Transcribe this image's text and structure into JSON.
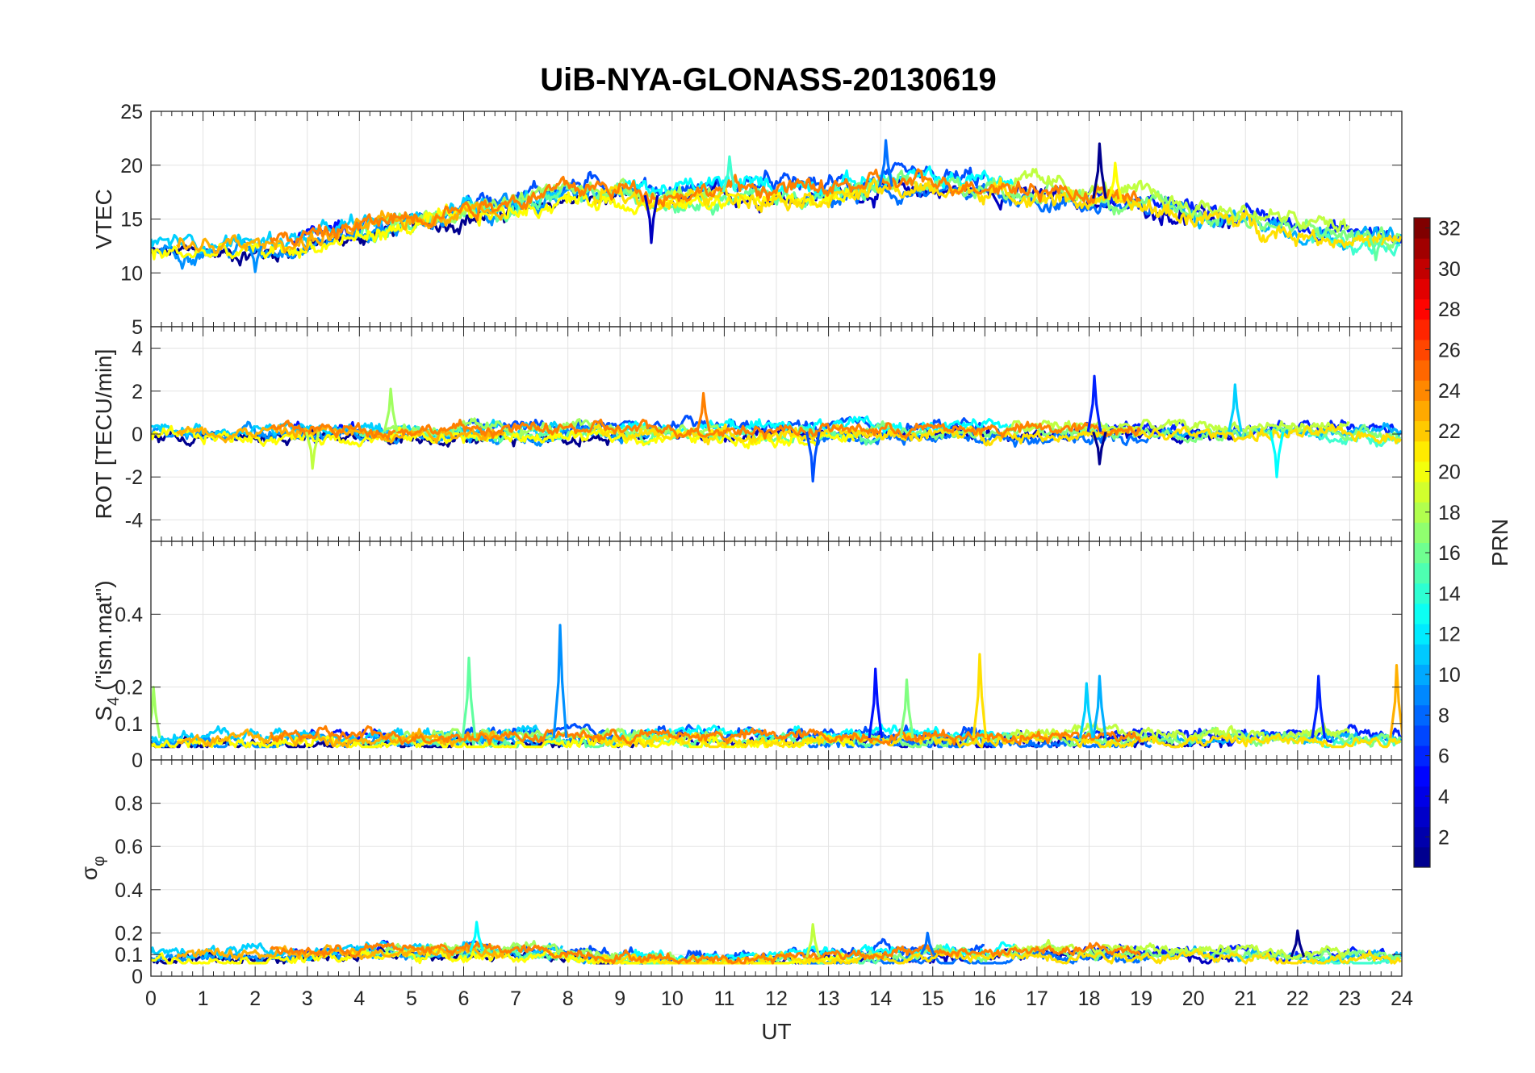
{
  "chart_data": {
    "type": "line",
    "title": "UiB-NYA-GLONASS-20130619",
    "xlabel": "UT",
    "xlim": [
      0,
      24
    ],
    "x_ticks": [
      "0",
      "1",
      "2",
      "3",
      "4",
      "5",
      "6",
      "7",
      "8",
      "9",
      "10",
      "11",
      "12",
      "13",
      "14",
      "15",
      "16",
      "17",
      "18",
      "19",
      "20",
      "21",
      "22",
      "23",
      "24"
    ],
    "grid": true,
    "panels": [
      {
        "id": "vtec",
        "ylabel": "VTEC",
        "ylim": [
          5,
          25
        ],
        "y_ticks": [
          "5",
          "10",
          "15",
          "20",
          "25"
        ],
        "baseline": [
          [
            0,
            12.5
          ],
          [
            2,
            12.5
          ],
          [
            3,
            13
          ],
          [
            4,
            14
          ],
          [
            5,
            15
          ],
          [
            6,
            15.8
          ],
          [
            7,
            16.5
          ],
          [
            8,
            17.5
          ],
          [
            9,
            17.5
          ],
          [
            10,
            17
          ],
          [
            11,
            17.5
          ],
          [
            12,
            17.5
          ],
          [
            13,
            17.5
          ],
          [
            14,
            18
          ],
          [
            15,
            18
          ],
          [
            16,
            18
          ],
          [
            17,
            17.5
          ],
          [
            18,
            17
          ],
          [
            19,
            16.5
          ],
          [
            20,
            15.5
          ],
          [
            21,
            15
          ],
          [
            22,
            14
          ],
          [
            23,
            13.5
          ],
          [
            24,
            13
          ]
        ],
        "noise": 1.0,
        "spikes": [
          [
            18.2,
            22
          ],
          [
            14.1,
            22.3
          ],
          [
            11.1,
            20.8
          ],
          [
            18.5,
            20.2
          ],
          [
            9.6,
            12.8
          ],
          [
            2,
            10.1
          ],
          [
            23.5,
            11.2
          ]
        ]
      },
      {
        "id": "rot",
        "ylabel": "ROT [TECU/min]",
        "ylim": [
          -5,
          5
        ],
        "y_ticks": [
          "-4",
          "-2",
          "0",
          "2",
          "4"
        ],
        "baseline": [
          [
            0,
            0.1
          ],
          [
            24,
            0.1
          ]
        ],
        "noise": 0.35,
        "spikes": [
          [
            18.1,
            2.7
          ],
          [
            20.8,
            2.3
          ],
          [
            4.6,
            2.1
          ],
          [
            10.6,
            1.9
          ],
          [
            12.7,
            -2.2
          ],
          [
            21.6,
            -2.0
          ],
          [
            3.1,
            -1.6
          ],
          [
            18.2,
            -1.4
          ]
        ]
      },
      {
        "id": "s4",
        "ylabel": "S4 (\"ism.mat\")",
        "ylabel_main": "S",
        "ylabel_sub": "4",
        "ylabel_rest": " (\"ism.mat\")",
        "ylim": [
          0,
          0.6
        ],
        "y_ticks": [
          "0",
          "0.1",
          "0.2",
          "0.4"
        ],
        "y_tick_values": [
          0,
          0.1,
          0.2,
          0.4
        ],
        "baseline": [
          [
            0,
            0.06
          ],
          [
            24,
            0.06
          ]
        ],
        "noise": 0.02,
        "spikes": [
          [
            7.85,
            0.37
          ],
          [
            6.1,
            0.28
          ],
          [
            15.9,
            0.29
          ],
          [
            13.9,
            0.25
          ],
          [
            18.2,
            0.23
          ],
          [
            14.5,
            0.22
          ],
          [
            23.9,
            0.26
          ],
          [
            22.4,
            0.23
          ],
          [
            17.95,
            0.21
          ],
          [
            0.05,
            0.2
          ]
        ]
      },
      {
        "id": "sigma",
        "ylabel": "σφ",
        "ylabel_main": "σ",
        "ylabel_sub": "φ",
        "ylim": [
          0,
          1
        ],
        "y_ticks": [
          "0",
          "0.1",
          "0.2",
          "0.4",
          "0.6",
          "0.8"
        ],
        "y_tick_values": [
          0,
          0.1,
          0.2,
          0.4,
          0.6,
          0.8
        ],
        "baseline": [
          [
            0,
            0.1
          ],
          [
            3,
            0.1
          ],
          [
            4.5,
            0.12
          ],
          [
            6,
            0.12
          ],
          [
            8,
            0.1
          ],
          [
            10,
            0.07
          ],
          [
            12,
            0.08
          ],
          [
            14,
            0.1
          ],
          [
            16,
            0.1
          ],
          [
            18,
            0.11
          ],
          [
            20,
            0.1
          ],
          [
            22,
            0.09
          ],
          [
            24,
            0.09
          ]
        ],
        "noise": 0.03,
        "spikes": [
          [
            6.25,
            0.25
          ],
          [
            12.7,
            0.24
          ],
          [
            22.0,
            0.21
          ],
          [
            14.9,
            0.2
          ]
        ]
      }
    ],
    "colorbar": {
      "label": "PRN",
      "range": [
        1,
        32
      ],
      "ticks": [
        "2",
        "4",
        "6",
        "8",
        "10",
        "12",
        "14",
        "16",
        "18",
        "20",
        "22",
        "24",
        "26",
        "28",
        "30",
        "32"
      ],
      "colormap": "jet",
      "colormap_stops": [
        "#00008f",
        "#0000ff",
        "#0080ff",
        "#00ffff",
        "#80ff80",
        "#ffff00",
        "#ff8000",
        "#ff0000",
        "#800000"
      ]
    },
    "series": [
      {
        "prn": 1,
        "color": "#00008f",
        "start": 0.0,
        "end": 9.5
      },
      {
        "prn": 2,
        "color": "#0000c0",
        "start": 10.0,
        "end": 20.8
      },
      {
        "prn": 3,
        "color": "#0010ff",
        "start": 2.7,
        "end": 4.6
      },
      {
        "prn": 4,
        "color": "#0020ff",
        "start": 17.9,
        "end": 24.0
      },
      {
        "prn": 5,
        "color": "#0050ff",
        "start": 6.0,
        "end": 16.0
      },
      {
        "prn": 6,
        "color": "#0070ff",
        "start": 12.5,
        "end": 19.2
      },
      {
        "prn": 7,
        "color": "#0090ff",
        "start": 0.0,
        "end": 9.6
      },
      {
        "prn": 8,
        "color": "#00b0ff",
        "start": 19.4,
        "end": 24.0
      },
      {
        "prn": 9,
        "color": "#00d0ff",
        "start": 0.0,
        "end": 7.9
      },
      {
        "prn": 10,
        "color": "#00ffff",
        "start": 9.0,
        "end": 16.6
      },
      {
        "prn": 11,
        "color": "#40ffd0",
        "start": 22.2,
        "end": 24.0
      },
      {
        "prn": 12,
        "color": "#60ffa0",
        "start": 4.0,
        "end": 14.0
      },
      {
        "prn": 13,
        "color": "#80ff80",
        "start": 13.5,
        "end": 24.0
      },
      {
        "prn": 14,
        "color": "#a0ff60",
        "start": 4.5,
        "end": 11.0
      },
      {
        "prn": 15,
        "color": "#c0ff40",
        "start": 16.5,
        "end": 23.0
      },
      {
        "prn": 16,
        "color": "#ffff00",
        "start": 0.0,
        "end": 13.5
      },
      {
        "prn": 17,
        "color": "#ffe000",
        "start": 8.5,
        "end": 24.0
      },
      {
        "prn": 18,
        "color": "#ffb000",
        "start": 0.5,
        "end": 6.8
      },
      {
        "prn": 19,
        "color": "#ff8000",
        "start": 2.3,
        "end": 19.0
      }
    ]
  }
}
